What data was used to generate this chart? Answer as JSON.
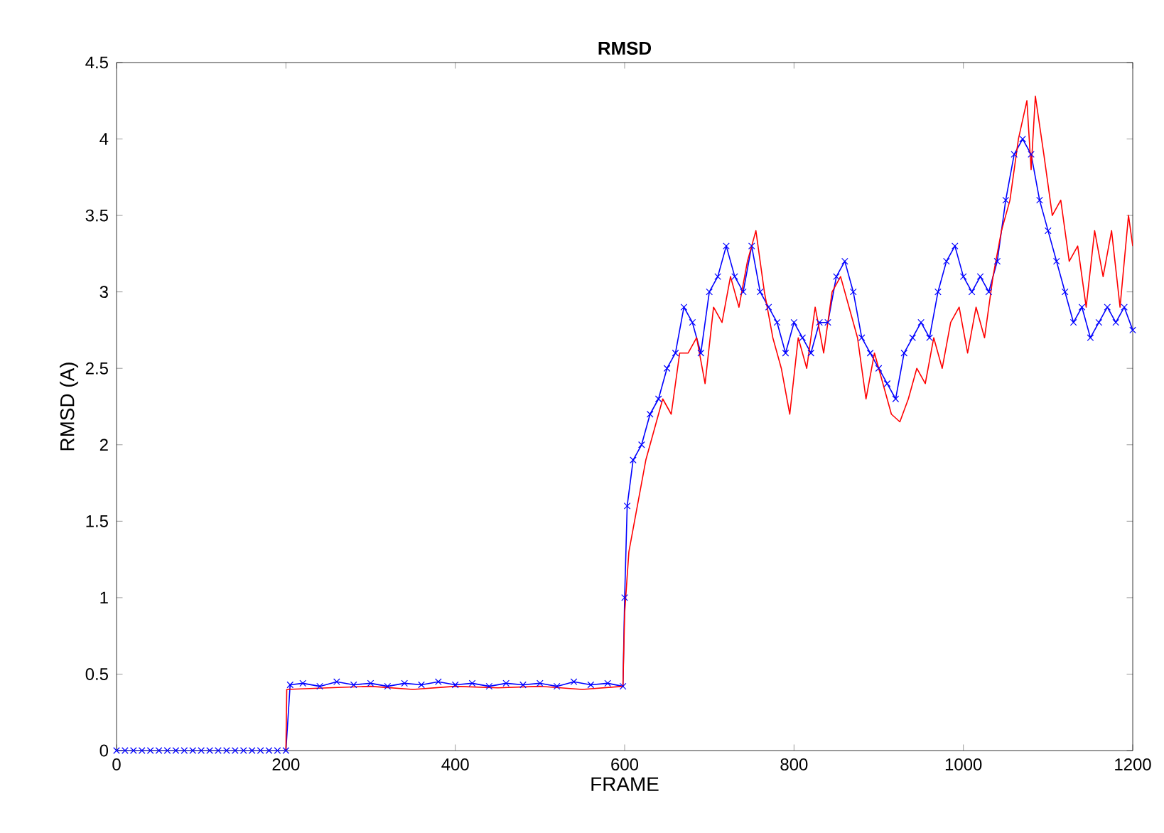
{
  "chart_data": {
    "type": "line",
    "title": "RMSD",
    "xlabel": "FRAME",
    "ylabel": "RMSD (A)",
    "xlim": [
      0,
      1200
    ],
    "ylim": [
      0,
      4.5
    ],
    "xticks": [
      0,
      200,
      400,
      600,
      800,
      1000,
      1200
    ],
    "yticks": [
      0,
      0.5,
      1,
      1.5,
      2,
      2.5,
      3,
      3.5,
      4,
      4.5
    ],
    "grid": false,
    "series": [
      {
        "color": "#0000ff",
        "marker": "cross",
        "x": [
          0,
          10,
          20,
          30,
          40,
          50,
          60,
          70,
          80,
          90,
          100,
          110,
          120,
          130,
          140,
          150,
          160,
          170,
          180,
          190,
          200,
          205,
          220,
          240,
          260,
          280,
          300,
          320,
          340,
          360,
          380,
          400,
          420,
          440,
          460,
          480,
          500,
          520,
          540,
          560,
          580,
          598,
          600,
          603,
          610,
          620,
          630,
          640,
          650,
          660,
          670,
          680,
          690,
          700,
          710,
          720,
          730,
          740,
          750,
          760,
          770,
          780,
          790,
          800,
          810,
          820,
          830,
          840,
          850,
          860,
          870,
          880,
          890,
          900,
          910,
          920,
          930,
          940,
          950,
          960,
          970,
          980,
          990,
          1000,
          1010,
          1020,
          1030,
          1040,
          1050,
          1060,
          1070,
          1080,
          1090,
          1100,
          1110,
          1120,
          1130,
          1140,
          1150,
          1160,
          1170,
          1180,
          1190,
          1200
        ],
        "values": [
          0,
          0,
          0,
          0,
          0,
          0,
          0,
          0,
          0,
          0,
          0,
          0,
          0,
          0,
          0,
          0,
          0,
          0,
          0,
          0,
          0,
          0.43,
          0.44,
          0.42,
          0.45,
          0.43,
          0.44,
          0.42,
          0.44,
          0.43,
          0.45,
          0.43,
          0.44,
          0.42,
          0.44,
          0.43,
          0.44,
          0.42,
          0.45,
          0.43,
          0.44,
          0.42,
          1.0,
          1.6,
          1.9,
          2.0,
          2.2,
          2.3,
          2.5,
          2.6,
          2.9,
          2.8,
          2.6,
          3.0,
          3.1,
          3.3,
          3.1,
          3.0,
          3.3,
          3.0,
          2.9,
          2.8,
          2.6,
          2.8,
          2.7,
          2.6,
          2.8,
          2.8,
          3.1,
          3.2,
          3.0,
          2.7,
          2.6,
          2.5,
          2.4,
          2.3,
          2.6,
          2.7,
          2.8,
          2.7,
          3.0,
          3.2,
          3.3,
          3.1,
          3.0,
          3.1,
          3.0,
          3.2,
          3.6,
          3.9,
          4.0,
          3.9,
          3.6,
          3.4,
          3.2,
          3.0,
          2.8,
          2.9,
          2.7,
          2.8,
          2.9,
          2.8,
          2.9,
          2.75
        ]
      },
      {
        "color": "#ff0000",
        "marker": "none",
        "x": [
          200,
          201,
          250,
          300,
          350,
          400,
          450,
          500,
          550,
          598,
          600,
          605,
          615,
          625,
          635,
          645,
          655,
          665,
          675,
          685,
          695,
          705,
          715,
          725,
          735,
          745,
          755,
          765,
          775,
          785,
          795,
          805,
          815,
          825,
          835,
          845,
          855,
          865,
          875,
          885,
          895,
          905,
          915,
          925,
          935,
          945,
          955,
          965,
          975,
          985,
          995,
          1005,
          1015,
          1025,
          1035,
          1045,
          1055,
          1065,
          1075,
          1080,
          1085,
          1095,
          1105,
          1115,
          1125,
          1135,
          1145,
          1155,
          1165,
          1175,
          1185,
          1195,
          1200
        ],
        "values": [
          0,
          0.4,
          0.41,
          0.42,
          0.4,
          0.42,
          0.41,
          0.42,
          0.4,
          0.42,
          0.9,
          1.3,
          1.6,
          1.9,
          2.1,
          2.3,
          2.2,
          2.6,
          2.6,
          2.7,
          2.4,
          2.9,
          2.8,
          3.1,
          2.9,
          3.2,
          3.4,
          3.0,
          2.7,
          2.5,
          2.2,
          2.7,
          2.5,
          2.9,
          2.6,
          3.0,
          3.1,
          2.9,
          2.7,
          2.3,
          2.6,
          2.4,
          2.2,
          2.15,
          2.3,
          2.5,
          2.4,
          2.7,
          2.5,
          2.8,
          2.9,
          2.6,
          2.9,
          2.7,
          3.1,
          3.4,
          3.6,
          4.0,
          4.25,
          3.8,
          4.28,
          3.9,
          3.5,
          3.6,
          3.2,
          3.3,
          2.9,
          3.4,
          3.1,
          3.4,
          2.9,
          3.5,
          3.3
        ]
      }
    ]
  }
}
